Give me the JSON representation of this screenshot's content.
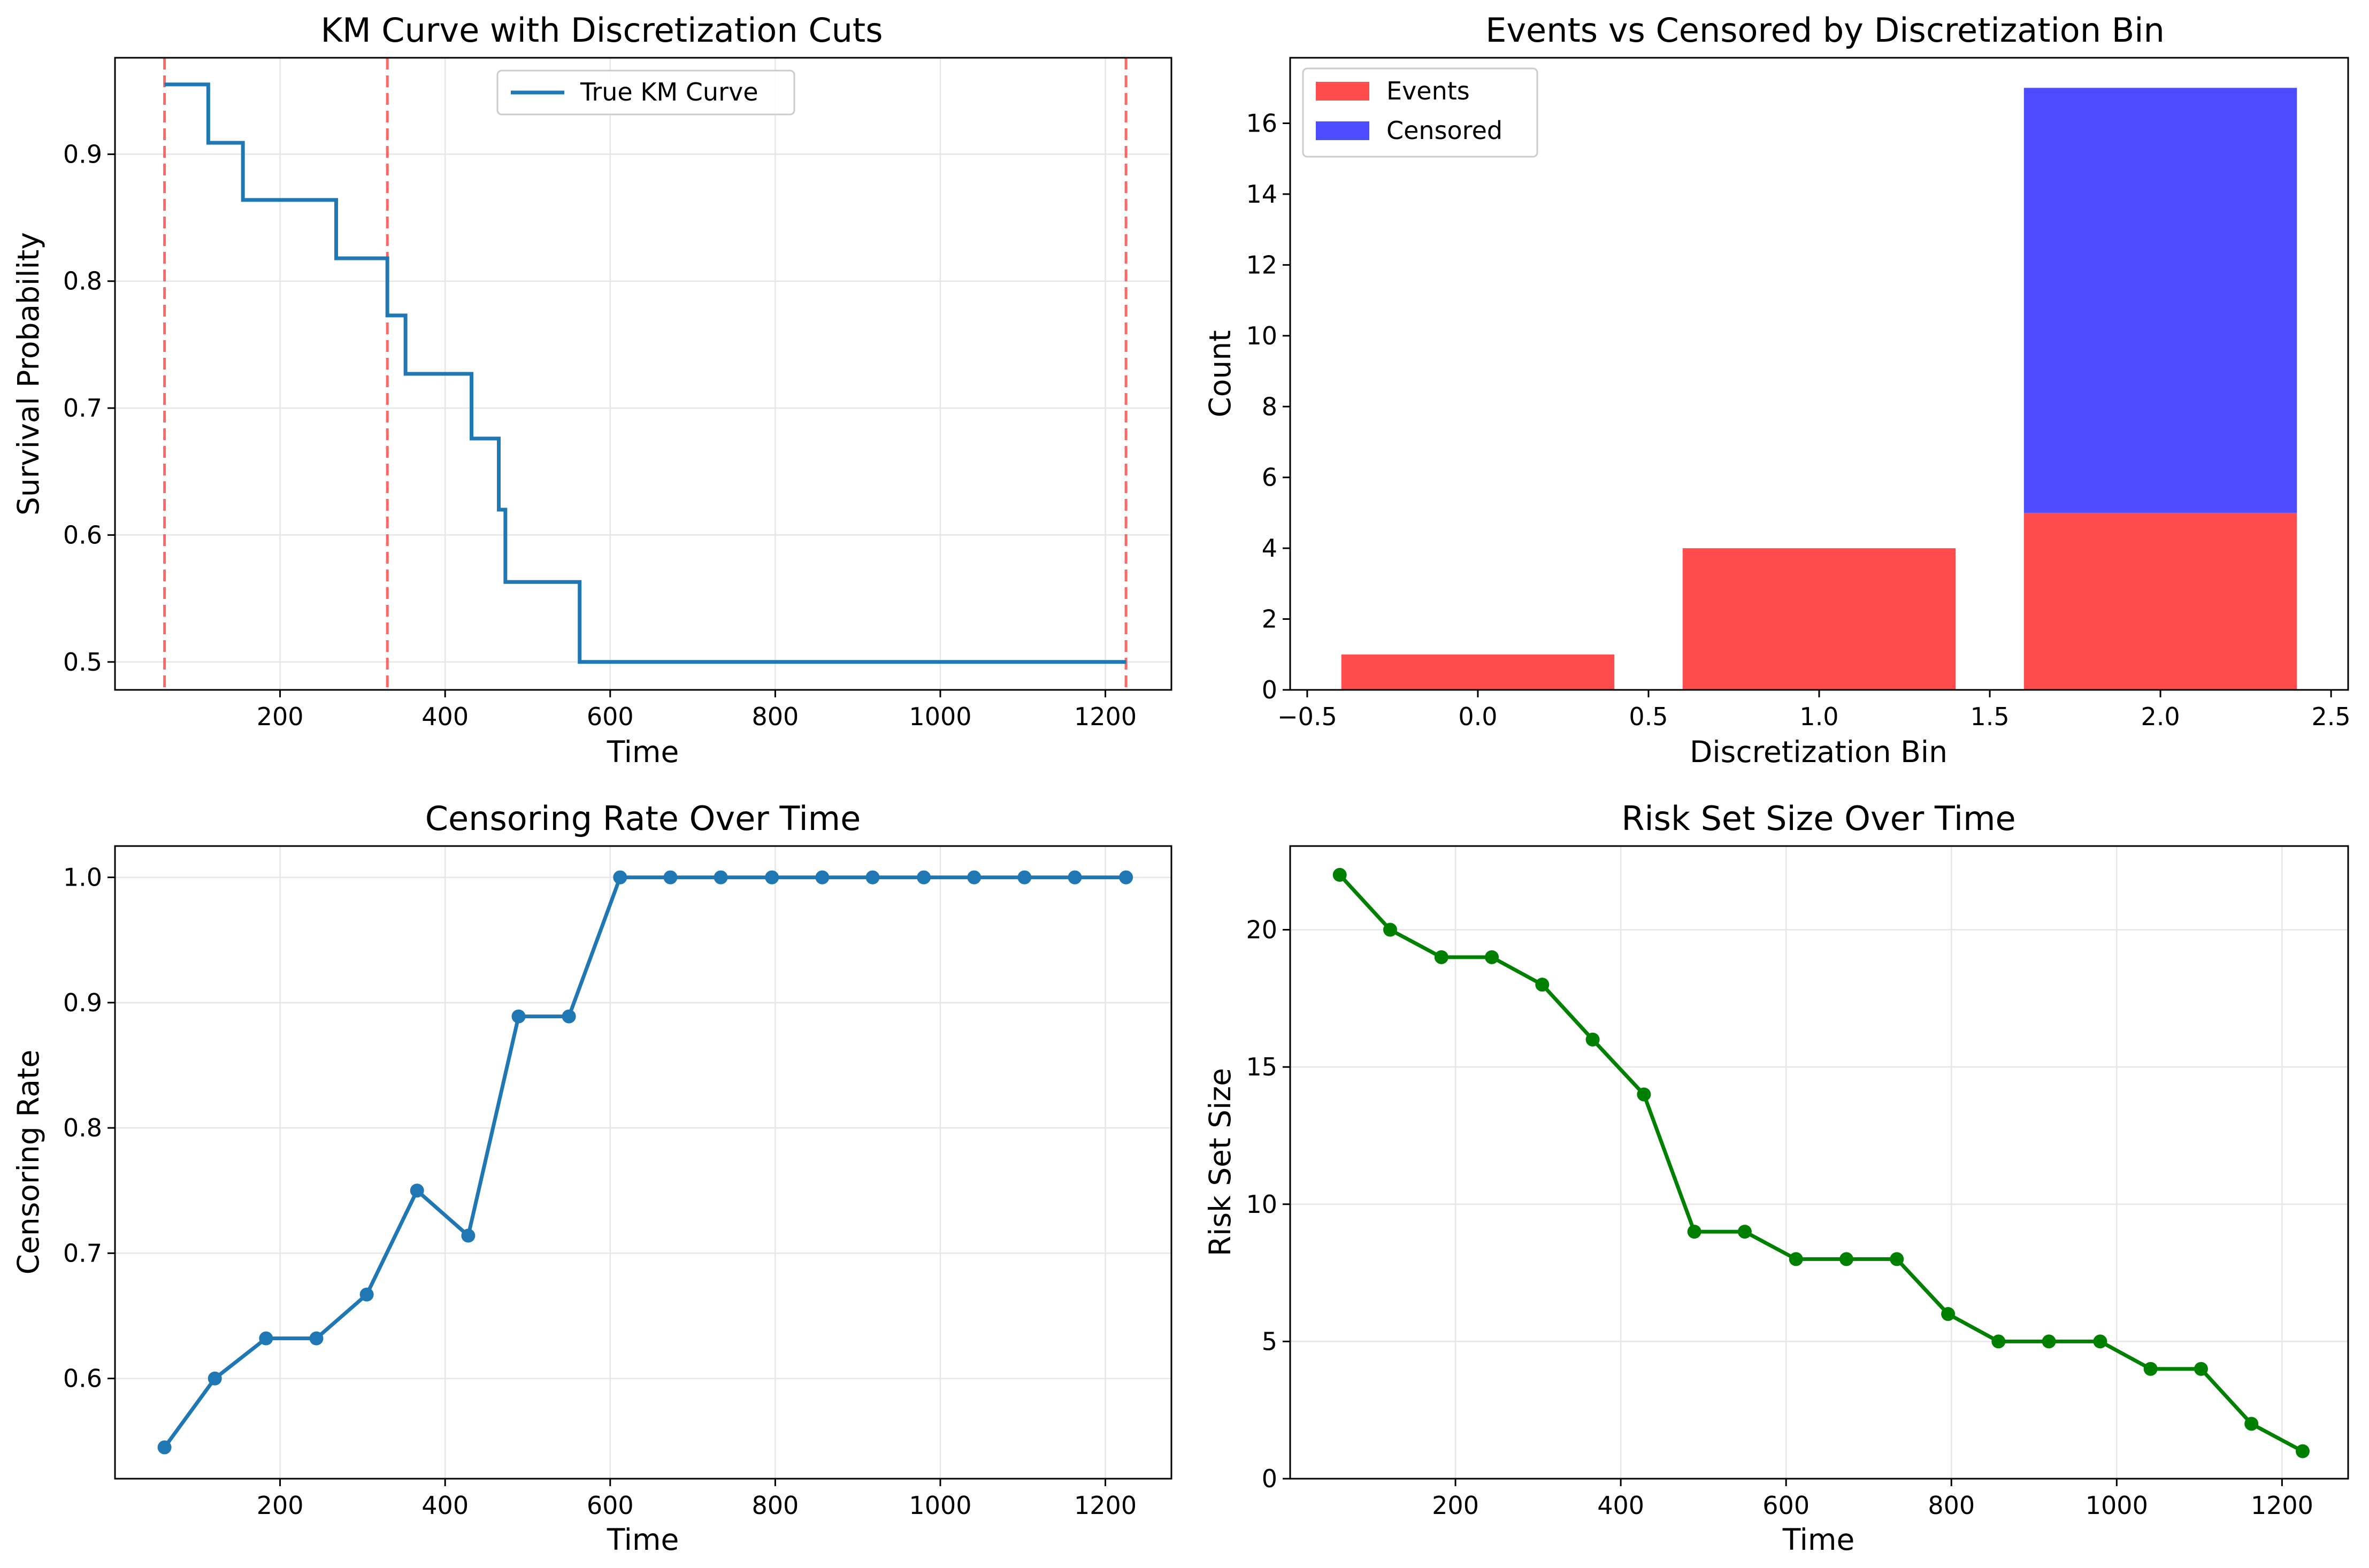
{
  "colors": {
    "km_line": "#1f77b4",
    "cut_line": "#ff4d4d",
    "events": "#ff4d4d",
    "censored": "#4d4dff",
    "censoring_line": "#1f77b4",
    "risk_line": "#008000",
    "grid": "#e6e6e6"
  },
  "chart_data": [
    {
      "id": "km",
      "type": "line",
      "title": "KM Curve with Discretization Cuts",
      "xlabel": "Time",
      "ylabel": "Survival Probability",
      "xlim": [
        0,
        1280
      ],
      "ylim": [
        0.478,
        0.976
      ],
      "xticks": [
        200,
        400,
        600,
        800,
        1000,
        1200
      ],
      "yticks": [
        0.5,
        0.6,
        0.7,
        0.8,
        0.9
      ],
      "xtick_labels": [
        "200",
        "400",
        "600",
        "800",
        "1000",
        "1200"
      ],
      "ytick_labels": [
        "0.5",
        "0.6",
        "0.7",
        "0.8",
        "0.9"
      ],
      "grid": true,
      "legend": {
        "placement": "top-center",
        "entries": [
          "True KM Curve"
        ]
      },
      "series": [
        {
          "name": "True KM Curve",
          "style": "step",
          "x": [
            60,
            113,
            155,
            268,
            330,
            352,
            432,
            465,
            473,
            563,
            1225
          ],
          "y": [
            0.955,
            0.909,
            0.864,
            0.818,
            0.773,
            0.727,
            0.676,
            0.62,
            0.563,
            0.5,
            0.5
          ]
        }
      ],
      "cuts": [
        60,
        330,
        1225
      ]
    },
    {
      "id": "bins",
      "type": "bar",
      "stacked": true,
      "title": "Events vs Censored by Discretization Bin",
      "xlabel": "Discretization Bin",
      "ylabel": "Count",
      "xlim": [
        -0.55,
        2.55
      ],
      "ylim": [
        0,
        17.85
      ],
      "xticks": [
        -0.5,
        0.0,
        0.5,
        1.0,
        1.5,
        2.0,
        2.5
      ],
      "yticks": [
        0,
        2,
        4,
        6,
        8,
        10,
        12,
        14,
        16
      ],
      "xtick_labels": [
        "−0.5",
        "0.0",
        "0.5",
        "1.0",
        "1.5",
        "2.0",
        "2.5"
      ],
      "ytick_labels": [
        "0",
        "2",
        "4",
        "6",
        "8",
        "10",
        "12",
        "14",
        "16"
      ],
      "grid": false,
      "legend": {
        "placement": "top-left",
        "entries": [
          "Events",
          "Censored"
        ]
      },
      "bar_width": 0.8,
      "categories": [
        0,
        1,
        2
      ],
      "series": [
        {
          "name": "Events",
          "values": [
            1,
            4,
            5
          ]
        },
        {
          "name": "Censored",
          "values": [
            0,
            0,
            12
          ]
        }
      ]
    },
    {
      "id": "censoring",
      "type": "line",
      "title": "Censoring Rate Over Time",
      "xlabel": "Time",
      "ylabel": "Censoring Rate",
      "xlim": [
        0,
        1280
      ],
      "ylim": [
        0.52,
        1.025
      ],
      "xticks": [
        200,
        400,
        600,
        800,
        1000,
        1200
      ],
      "yticks": [
        0.6,
        0.7,
        0.8,
        0.9,
        1.0
      ],
      "xtick_labels": [
        "200",
        "400",
        "600",
        "800",
        "1000",
        "1200"
      ],
      "ytick_labels": [
        "0.6",
        "0.7",
        "0.8",
        "0.9",
        "1.0"
      ],
      "grid": true,
      "series": [
        {
          "x": [
            60,
            121,
            183,
            244,
            305,
            366,
            428,
            489,
            550,
            612,
            673,
            734,
            796,
            857,
            918,
            980,
            1041,
            1102,
            1163,
            1225
          ],
          "y": [
            0.545,
            0.6,
            0.632,
            0.632,
            0.667,
            0.75,
            0.714,
            0.889,
            0.889,
            1.0,
            1.0,
            1.0,
            1.0,
            1.0,
            1.0,
            1.0,
            1.0,
            1.0,
            1.0,
            1.0
          ]
        }
      ]
    },
    {
      "id": "risk",
      "type": "line",
      "title": "Risk Set Size Over Time",
      "xlabel": "Time",
      "ylabel": "Risk Set Size",
      "xlim": [
        0,
        1280
      ],
      "ylim": [
        0,
        23.05
      ],
      "xticks": [
        200,
        400,
        600,
        800,
        1000,
        1200
      ],
      "yticks": [
        0,
        5,
        10,
        15,
        20
      ],
      "xtick_labels": [
        "200",
        "400",
        "600",
        "800",
        "1000",
        "1200"
      ],
      "ytick_labels": [
        "0",
        "5",
        "10",
        "15",
        "20"
      ],
      "grid": true,
      "series": [
        {
          "x": [
            60,
            121,
            183,
            244,
            305,
            366,
            428,
            489,
            550,
            612,
            673,
            734,
            796,
            857,
            918,
            980,
            1041,
            1102,
            1163,
            1225
          ],
          "y": [
            22,
            20,
            19,
            19,
            18,
            16,
            14,
            9,
            9,
            8,
            8,
            8,
            6,
            5,
            5,
            5,
            4,
            4,
            2,
            1
          ]
        }
      ]
    }
  ]
}
